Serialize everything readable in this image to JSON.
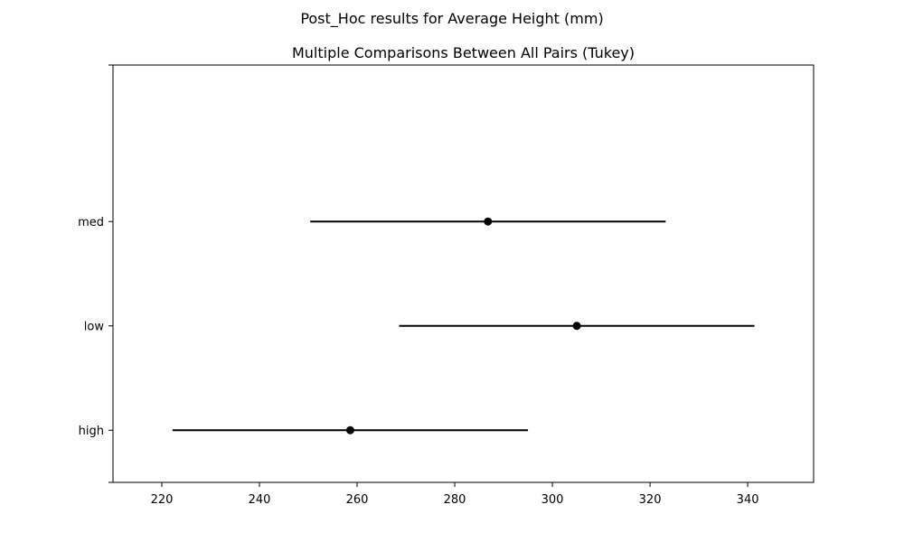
{
  "chart_data": {
    "type": "scatter",
    "suptitle": "Post_Hoc results for Average Height (mm)",
    "title": "Multiple Comparisons Between All Pairs (Tukey)",
    "xlabel": "",
    "ylabel": "",
    "xlim": [
      210,
      353.5
    ],
    "x_ticks": [
      220,
      240,
      260,
      280,
      300,
      320,
      340
    ],
    "categories": [
      "high",
      "low",
      "med"
    ],
    "ylim": [
      -0.5,
      3.5
    ],
    "series": [
      {
        "points": [
          {
            "category": "high",
            "mean": 258.6,
            "lower": 222.2,
            "upper": 295.0
          },
          {
            "category": "low",
            "mean": 305.0,
            "lower": 268.6,
            "upper": 341.4
          },
          {
            "category": "med",
            "mean": 286.8,
            "lower": 250.4,
            "upper": 323.2
          }
        ]
      }
    ],
    "color": "#000000",
    "grid": false
  }
}
